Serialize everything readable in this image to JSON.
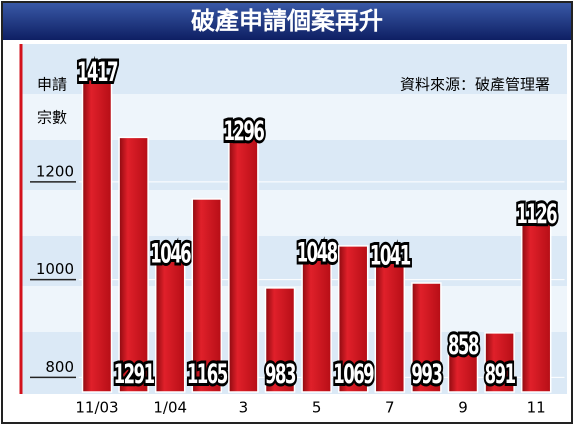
{
  "chart_data": {
    "type": "bar",
    "title": "破產申請個案再升",
    "source": "資料來源：破產管理署",
    "y_label": [
      "申請",
      "宗數"
    ],
    "categories": [
      "11/03",
      null,
      "1/04",
      null,
      "3",
      null,
      "5",
      null,
      "7",
      null,
      "9",
      null,
      "11"
    ],
    "values": [
      1417,
      1291,
      1046,
      1165,
      1296,
      983,
      1048,
      1069,
      1041,
      993,
      858,
      891,
      1126
    ],
    "color": "#d3121c",
    "ylim": [
      770,
      1480
    ],
    "yticks": [
      800,
      1000,
      1200
    ],
    "grid": true
  }
}
